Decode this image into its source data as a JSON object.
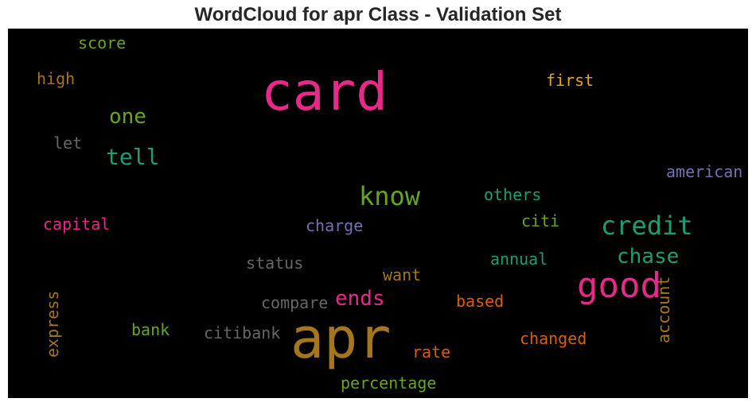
{
  "chart_data": {
    "type": "wordcloud",
    "title": "WordCloud for apr Class - Validation Set",
    "background": "#000000",
    "words": [
      {
        "text": "card",
        "color": "#e7298a"
      },
      {
        "text": "apr",
        "color": "#a6761d"
      },
      {
        "text": "good",
        "color": "#e7298a"
      },
      {
        "text": "credit",
        "color": "#1b9e77"
      },
      {
        "text": "know",
        "color": "#66a61e"
      },
      {
        "text": "chase",
        "color": "#1b9e77"
      },
      {
        "text": "tell",
        "color": "#1b9e77"
      },
      {
        "text": "one",
        "color": "#66a61e"
      },
      {
        "text": "ends",
        "color": "#e7298a"
      },
      {
        "text": "american",
        "color": "#7570b3"
      },
      {
        "text": "first",
        "color": "#e6ab02"
      },
      {
        "text": "score",
        "color": "#66a61e"
      },
      {
        "text": "high",
        "color": "#a6761d"
      },
      {
        "text": "let",
        "color": "#666666"
      },
      {
        "text": "capital",
        "color": "#e7298a"
      },
      {
        "text": "charge",
        "color": "#7570b3"
      },
      {
        "text": "others",
        "color": "#1b9e77"
      },
      {
        "text": "citi",
        "color": "#66a61e"
      },
      {
        "text": "annual",
        "color": "#1b9e77"
      },
      {
        "text": "status",
        "color": "#666666"
      },
      {
        "text": "want",
        "color": "#a6761d"
      },
      {
        "text": "compare",
        "color": "#666666"
      },
      {
        "text": "based",
        "color": "#d95f02"
      },
      {
        "text": "account",
        "color": "#a6761d"
      },
      {
        "text": "express",
        "color": "#a6761d"
      },
      {
        "text": "bank",
        "color": "#66a61e"
      },
      {
        "text": "citibank",
        "color": "#666666"
      },
      {
        "text": "changed",
        "color": "#d95f02"
      },
      {
        "text": "rate",
        "color": "#d95f02"
      },
      {
        "text": "percentage",
        "color": "#66a61e"
      }
    ]
  }
}
